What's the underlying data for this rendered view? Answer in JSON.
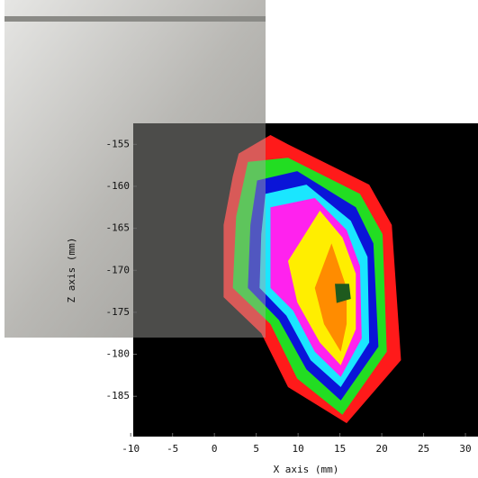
{
  "chart_data": {
    "type": "contour",
    "x_label": "X axis (mm)",
    "y_label": "Z axis (mm)",
    "xlim": [
      -9.7,
      31.5
    ],
    "ylim": [
      -189.8,
      -152.5
    ],
    "xticks": [
      -10,
      -5,
      0,
      5,
      10,
      15,
      20,
      25,
      30
    ],
    "yticks": [
      -185,
      -180,
      -175,
      -170,
      -165,
      -160,
      -155
    ],
    "background": "#000000",
    "contours": [
      {
        "color": "#ff1a1a",
        "x": [
          2.9,
          6.7,
          8.8,
          18.5,
          21.2,
          22.3,
          15.8,
          8.8,
          5.6,
          1.1,
          1.1,
          2.2
        ],
        "y": [
          -156.1,
          -153.9,
          -155,
          -159.8,
          -164.6,
          -180.7,
          -188.2,
          -183.9,
          -177.5,
          -173.2,
          -164.6,
          -158.8
        ]
      },
      {
        "color": "#22dd22",
        "x": [
          4,
          8.8,
          17.4,
          20.1,
          20.6,
          15.3,
          9.9,
          6.7,
          2.2,
          2.6
        ],
        "y": [
          -157.1,
          -156.6,
          -160.9,
          -165.7,
          -179.7,
          -187.2,
          -182.9,
          -176.4,
          -172.1,
          -163.6
        ]
      },
      {
        "color": "#0a14d8",
        "x": [
          5.1,
          9.9,
          16.9,
          19,
          19.6,
          15.1,
          11,
          7.7,
          4,
          4.3
        ],
        "y": [
          -159.3,
          -158.2,
          -162.5,
          -166.8,
          -179.1,
          -185.5,
          -181.8,
          -175.9,
          -172.1,
          -164.6
        ]
      },
      {
        "color": "#1ae6ff",
        "x": [
          6.1,
          11,
          16.3,
          18.3,
          18.5,
          15.1,
          11.5,
          8.6,
          5.4,
          5.6
        ],
        "y": [
          -160.9,
          -159.8,
          -164.1,
          -168.4,
          -178.6,
          -183.9,
          -180.7,
          -175.4,
          -172.1,
          -165.7
        ]
      },
      {
        "color": "#ff22ee",
        "x": [
          6.7,
          12,
          15.8,
          17.4,
          17.6,
          15.1,
          12,
          9.4,
          6.7
        ],
        "y": [
          -162.5,
          -161.4,
          -165.2,
          -169.5,
          -178.1,
          -182.7,
          -179.7,
          -174.8,
          -172.1
        ]
      },
      {
        "color": "#ffee00",
        "x": [
          8.8,
          12.6,
          15.3,
          16.9,
          16.9,
          15.1,
          12.6,
          9.9
        ],
        "y": [
          -168.9,
          -162.9,
          -166.1,
          -170.4,
          -177,
          -181.3,
          -178.6,
          -173.8
        ]
      },
      {
        "color": "#ff8c00",
        "x": [
          12,
          14,
          15.8,
          15.8,
          15.1,
          13.1
        ],
        "y": [
          -172.1,
          -166.8,
          -172.1,
          -176.4,
          -179.7,
          -176.4
        ]
      },
      {
        "color": "#1e5a1e",
        "x": [
          14.4,
          16.1,
          16.3,
          14.6
        ],
        "y": [
          -171.6,
          -171.6,
          -173.4,
          -173.9
        ]
      }
    ]
  }
}
